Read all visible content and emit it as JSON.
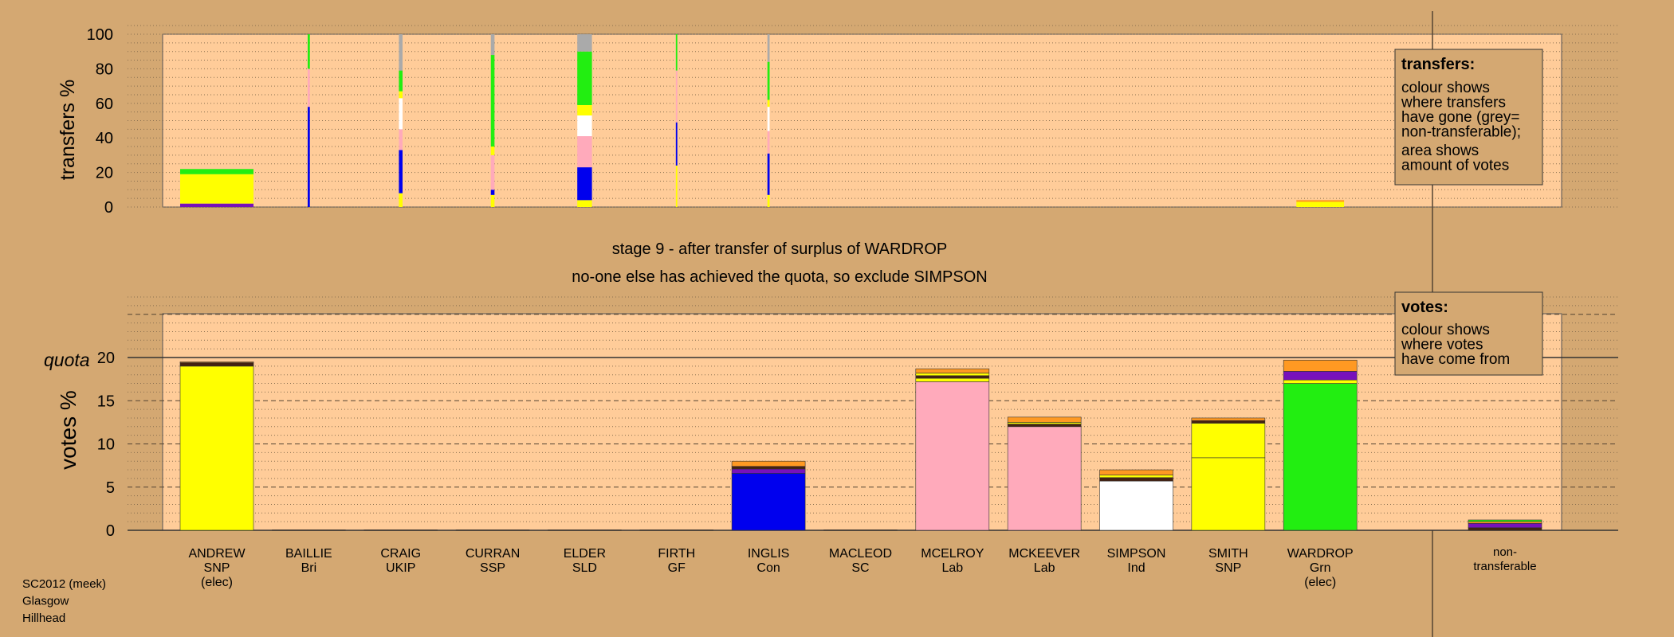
{
  "chart_data": {
    "type": "bar",
    "title": "stage 9 - after transfer of surplus of WARDROP",
    "subtitle": "no-one else has achieved the quota, so exclude SIMPSON",
    "footer": [
      "SC2012 (meek)",
      "Glasgow",
      "Hillhead"
    ],
    "colors": {
      "background": "#d4a872",
      "plot_area": "#ffcc99",
      "SNP": "#ffff00",
      "Grn": "#22ee11",
      "Lab": "#ffaabb",
      "Con": "#0000ee",
      "Ind": "#ffffff",
      "other": "#ff9922",
      "purple": "#7711bb",
      "dark": "#442211",
      "nontransferable": "#aaaaaa"
    },
    "candidates": [
      {
        "name": "ANDREW",
        "party": "SNP",
        "note": "(elec)"
      },
      {
        "name": "BAILLIE",
        "party": "Bri",
        "note": ""
      },
      {
        "name": "CRAIG",
        "party": "UKIP",
        "note": ""
      },
      {
        "name": "CURRAN",
        "party": "SSP",
        "note": ""
      },
      {
        "name": "ELDER",
        "party": "SLD",
        "note": ""
      },
      {
        "name": "FIRTH",
        "party": "GF",
        "note": ""
      },
      {
        "name": "INGLIS",
        "party": "Con",
        "note": ""
      },
      {
        "name": "MACLEOD",
        "party": "SC",
        "note": ""
      },
      {
        "name": "MCELROY",
        "party": "Lab",
        "note": ""
      },
      {
        "name": "MCKEEVER",
        "party": "Lab",
        "note": ""
      },
      {
        "name": "SIMPSON",
        "party": "Ind",
        "note": ""
      },
      {
        "name": "SMITH",
        "party": "SNP",
        "note": ""
      },
      {
        "name": "WARDROP",
        "party": "Grn",
        "note": "(elec)"
      }
    ],
    "nontransferable_label": [
      "non-",
      "transferable"
    ],
    "top_chart": {
      "ylabel": "transfers %",
      "ylim": [
        0,
        100
      ],
      "yticks": [
        0,
        20,
        40,
        60,
        80,
        100
      ],
      "legend_title": "transfers:",
      "legend_lines": [
        "colour shows",
        "where transfers",
        "have gone (grey=",
        "non-transferable);",
        "",
        "area shows",
        "amount of votes"
      ],
      "columns": [
        {
          "votes": 1.0,
          "segments": [
            [
              "purple",
              2
            ],
            [
              "SNP",
              17
            ],
            [
              "Grn",
              3
            ]
          ]
        },
        {
          "votes": 0.03,
          "segments": [
            [
              "Con",
              58
            ],
            [
              "Lab",
              22
            ],
            [
              "Grn",
              20
            ]
          ]
        },
        {
          "votes": 0.05,
          "segments": [
            [
              "SNP",
              8
            ],
            [
              "Con",
              25
            ],
            [
              "Lab",
              12
            ],
            [
              "Ind",
              18
            ],
            [
              "SNP",
              4
            ],
            [
              "Grn",
              12
            ],
            [
              "nontransferable",
              21
            ]
          ]
        },
        {
          "votes": 0.05,
          "segments": [
            [
              "SNP",
              7
            ],
            [
              "Con",
              3
            ],
            [
              "Lab",
              20
            ],
            [
              "SNP",
              5
            ],
            [
              "Grn",
              53
            ],
            [
              "nontransferable",
              12
            ]
          ]
        },
        {
          "votes": 0.2,
          "segments": [
            [
              "SNP",
              4
            ],
            [
              "Con",
              19
            ],
            [
              "Lab",
              18
            ],
            [
              "Ind",
              12
            ],
            [
              "SNP",
              6
            ],
            [
              "Grn",
              31
            ],
            [
              "nontransferable",
              10
            ]
          ]
        },
        {
          "votes": 0.02,
          "segments": [
            [
              "SNP",
              24
            ],
            [
              "Con",
              25
            ],
            [
              "Lab",
              30
            ],
            [
              "Grn",
              21
            ]
          ]
        },
        {
          "votes": 0.03,
          "segments": [
            [
              "SNP",
              7
            ],
            [
              "Con",
              24
            ],
            [
              "Lab",
              13
            ],
            [
              "Ind",
              14
            ],
            [
              "SNP",
              4
            ],
            [
              "Grn",
              22
            ],
            [
              "nontransferable",
              16
            ]
          ]
        },
        {
          "votes": 0.0,
          "segments": []
        },
        {
          "votes": 0.0,
          "segments": []
        },
        {
          "votes": 0.0,
          "segments": []
        },
        {
          "votes": 0.0,
          "segments": []
        },
        {
          "votes": 0.0,
          "segments": []
        },
        {
          "votes": 0.65,
          "segments": [
            [
              "SNP",
              3
            ],
            [
              "other",
              1
            ]
          ]
        }
      ]
    },
    "bottom_chart": {
      "ylabel": "votes %",
      "quota_label": "quota",
      "quota": 20,
      "ylim": [
        0,
        25
      ],
      "yticks": [
        0,
        5,
        10,
        15,
        20
      ],
      "legend_title": "votes:",
      "legend_lines": [
        "colour shows",
        "where votes",
        "have come from"
      ],
      "bars": [
        {
          "segments": [
            [
              "SNP",
              19.0
            ],
            [
              "dark",
              0.4
            ],
            [
              "other",
              0.1
            ]
          ]
        },
        {
          "segments": [
            [
              "dark",
              0.05
            ]
          ]
        },
        {
          "segments": [
            [
              "dark",
              0.05
            ]
          ]
        },
        {
          "segments": [
            [
              "dark",
              0.05
            ]
          ]
        },
        {
          "segments": [
            [
              "dark",
              0.05
            ]
          ]
        },
        {
          "segments": [
            [
              "dark",
              0.05
            ]
          ]
        },
        {
          "segments": [
            [
              "Con",
              6.6
            ],
            [
              "purple",
              0.5
            ],
            [
              "dark",
              0.3
            ],
            [
              "other",
              0.6
            ]
          ]
        },
        {
          "segments": [
            [
              "dark",
              0.05
            ]
          ]
        },
        {
          "segments": [
            [
              "Lab",
              17.2
            ],
            [
              "SNP",
              0.4
            ],
            [
              "dark",
              0.3
            ],
            [
              "SNP",
              0.3
            ],
            [
              "other",
              0.5
            ]
          ]
        },
        {
          "segments": [
            [
              "Lab",
              12.0
            ],
            [
              "dark",
              0.3
            ],
            [
              "SNP",
              0.2
            ],
            [
              "other",
              0.6
            ]
          ]
        },
        {
          "segments": [
            [
              "Ind",
              5.7
            ],
            [
              "dark",
              0.4
            ],
            [
              "SNP",
              0.3
            ],
            [
              "other",
              0.6
            ]
          ]
        },
        {
          "segments": [
            [
              "SNP",
              8.4
            ],
            [
              "SNP",
              4.0
            ],
            [
              "dark",
              0.3
            ],
            [
              "other",
              0.3
            ]
          ]
        },
        {
          "segments": [
            [
              "Grn",
              17.0
            ],
            [
              "SNP",
              0.4
            ],
            [
              "purple",
              1.0
            ],
            [
              "other",
              1.3
            ]
          ]
        }
      ],
      "nontransferable_bar": {
        "segments": [
          [
            "dark",
            0.3
          ],
          [
            "purple",
            0.5
          ],
          [
            "other",
            0.2
          ],
          [
            "Grn",
            0.2
          ]
        ]
      }
    }
  }
}
